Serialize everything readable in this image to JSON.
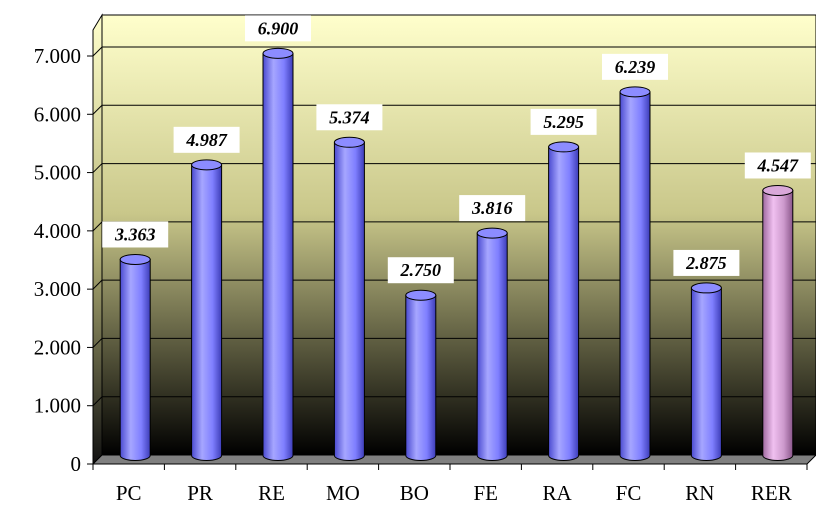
{
  "chart_data": {
    "type": "bar",
    "style": "3d-cylinder",
    "categories": [
      "PC",
      "PR",
      "RE",
      "MO",
      "BO",
      "FE",
      "RA",
      "FC",
      "RN",
      "RER"
    ],
    "series": [
      {
        "values": [
          3.363,
          4.987,
          6.9,
          5.374,
          2.75,
          3.816,
          5.295,
          6.239,
          2.875,
          4.547
        ],
        "value_labels": [
          "3.363",
          "4.987",
          "6.900",
          "5.374",
          "2.750",
          "3.816",
          "5.295",
          "6.239",
          "2.875",
          "4.547"
        ]
      }
    ],
    "ylim": [
      0,
      7
    ],
    "yticks": [
      0,
      1,
      2,
      3,
      4,
      5,
      6,
      7
    ],
    "ytick_labels": [
      "0",
      "1.000",
      "2.000",
      "3.000",
      "4.000",
      "5.000",
      "6.000",
      "7.000"
    ],
    "grid": true,
    "legend": "none",
    "colors": {
      "bar": "#7f7fff",
      "bar_highlight": "#cc99cc",
      "highlight_category": "RER",
      "wall_top": "#ffffcc",
      "wall_bottom": "#000000",
      "floor": "#808080"
    }
  }
}
